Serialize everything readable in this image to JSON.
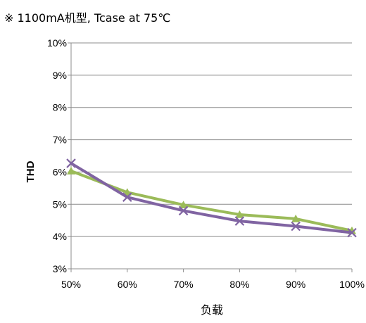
{
  "chart_data": {
    "type": "line",
    "title": "※ 1100mA机型, Tcase at 75℃",
    "xlabel": "负载",
    "ylabel": "THD",
    "categories": [
      "50%",
      "60%",
      "70%",
      "80%",
      "90%",
      "100%"
    ],
    "yticks": [
      "3%",
      "4%",
      "5%",
      "6%",
      "7%",
      "8%",
      "9%",
      "10%"
    ],
    "ylim": [
      3,
      10
    ],
    "grid": true,
    "legend": "none",
    "series": [
      {
        "color": "#9BBB59",
        "marker": "triangle",
        "values": [
          6.03,
          5.37,
          4.98,
          4.68,
          4.55,
          4.18
        ]
      },
      {
        "color": "#8064A2",
        "marker": "x",
        "values": [
          6.27,
          5.22,
          4.8,
          4.48,
          4.32,
          4.12
        ]
      }
    ]
  }
}
